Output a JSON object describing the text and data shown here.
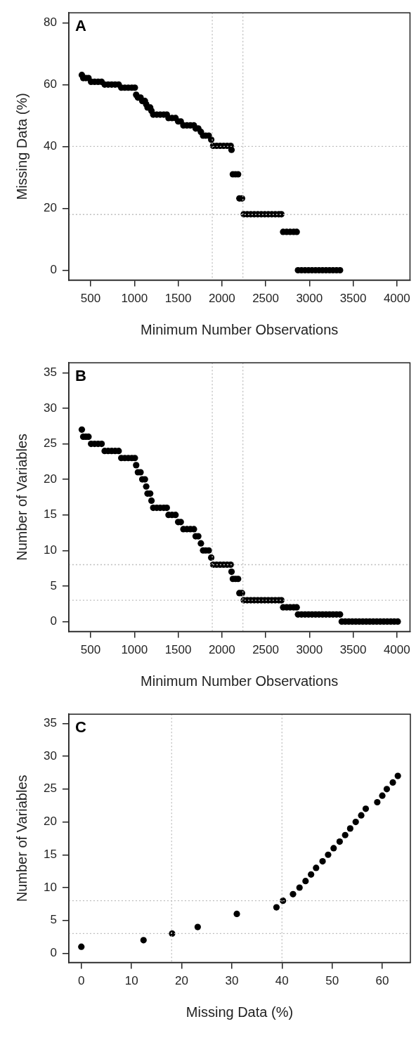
{
  "chart_data": [
    {
      "type": "scatter",
      "xlabel": "Minimum Number Observations",
      "ylabel": "Missing Data (%)",
      "annotations": [
        "A"
      ],
      "marker": "circle",
      "color": "#000000",
      "x": [
        399,
        415,
        445,
        475,
        505,
        545,
        585,
        625,
        660,
        700,
        740,
        780,
        820,
        850,
        890,
        930,
        970,
        1005,
        1020,
        1040,
        1070,
        1090,
        1120,
        1135,
        1150,
        1180,
        1195,
        1215,
        1255,
        1295,
        1335,
        1370,
        1390,
        1430,
        1470,
        1500,
        1530,
        1560,
        1600,
        1640,
        1680,
        1700,
        1730,
        1760,
        1785,
        1815,
        1850,
        1878,
        1900,
        1940,
        1980,
        2020,
        2060,
        2100,
        2110,
        2125,
        2155,
        2185,
        2200,
        2230,
        2250,
        2290,
        2330,
        2370,
        2410,
        2450,
        2490,
        2530,
        2570,
        2610,
        2650,
        2680,
        2700,
        2740,
        2780,
        2820,
        2855,
        2870,
        2910,
        2950,
        2990,
        3030,
        3070,
        3110,
        3150,
        3190,
        3230,
        3270,
        3310,
        3350
      ],
      "values": [
        63.1,
        62.1,
        62.1,
        62.1,
        60.9,
        60.9,
        60.9,
        60.9,
        60.0,
        60.0,
        60.0,
        60.0,
        60.0,
        59.0,
        59.0,
        59.0,
        59.0,
        59.0,
        56.7,
        55.8,
        55.8,
        54.7,
        54.7,
        53.6,
        52.6,
        52.6,
        51.5,
        50.3,
        50.3,
        50.3,
        50.3,
        50.3,
        49.2,
        49.2,
        49.2,
        48.1,
        48.1,
        46.8,
        46.8,
        46.8,
        46.8,
        45.8,
        45.8,
        44.7,
        43.5,
        43.5,
        43.5,
        42.2,
        40.2,
        40.2,
        40.2,
        40.2,
        40.2,
        40.2,
        38.9,
        31.0,
        31.0,
        31.0,
        23.2,
        23.2,
        18.1,
        18.1,
        18.1,
        18.1,
        18.1,
        18.1,
        18.1,
        18.1,
        18.1,
        18.1,
        18.1,
        18.1,
        12.4,
        12.4,
        12.4,
        12.4,
        12.4,
        0,
        0,
        0,
        0,
        0,
        0,
        0,
        0,
        0,
        0,
        0,
        0,
        0
      ],
      "xlim": [
        250,
        4150
      ],
      "xticks": [
        500,
        1000,
        1500,
        2000,
        2500,
        3000,
        3500,
        4000
      ],
      "ylim": [
        -3.2,
        83.2
      ],
      "yticks": [
        0,
        20,
        40,
        60,
        80
      ],
      "ref_lines": [
        {
          "axis": "x",
          "value": 1890,
          "color": "#bebebe",
          "line_style": "dotted"
        },
        {
          "axis": "x",
          "value": 2240,
          "color": "#bebebe",
          "line_style": "dotted"
        },
        {
          "axis": "y",
          "value": 40,
          "color": "#bebebe",
          "line_style": "dotted"
        },
        {
          "axis": "y",
          "value": 18,
          "color": "#bebebe",
          "line_style": "dotted"
        }
      ]
    },
    {
      "type": "scatter",
      "xlabel": "Minimum Number Observations",
      "ylabel": "Number of Variables",
      "annotations": [
        "B"
      ],
      "marker": "circle",
      "color": "#000000",
      "x": [
        399,
        415,
        445,
        475,
        505,
        545,
        585,
        625,
        660,
        700,
        740,
        780,
        820,
        850,
        890,
        930,
        970,
        1005,
        1020,
        1040,
        1070,
        1090,
        1120,
        1135,
        1150,
        1180,
        1195,
        1215,
        1255,
        1295,
        1335,
        1370,
        1390,
        1430,
        1470,
        1500,
        1530,
        1560,
        1600,
        1640,
        1680,
        1700,
        1730,
        1760,
        1785,
        1815,
        1850,
        1878,
        1900,
        1940,
        1980,
        2020,
        2060,
        2100,
        2110,
        2125,
        2155,
        2185,
        2200,
        2230,
        2250,
        2290,
        2330,
        2370,
        2410,
        2450,
        2490,
        2530,
        2570,
        2610,
        2650,
        2680,
        2700,
        2740,
        2780,
        2820,
        2855,
        2870,
        2910,
        2950,
        2990,
        3030,
        3070,
        3110,
        3150,
        3190,
        3230,
        3270,
        3310,
        3350,
        3370,
        3410,
        3450,
        3490,
        3530,
        3570,
        3610,
        3650,
        3690,
        3730,
        3770,
        3810,
        3850,
        3890,
        3930,
        3970,
        4010
      ],
      "values": [
        27,
        26,
        26,
        26,
        25,
        25,
        25,
        25,
        24,
        24,
        24,
        24,
        24,
        23,
        23,
        23,
        23,
        23,
        22,
        21,
        21,
        20,
        20,
        19,
        18,
        18,
        17,
        16,
        16,
        16,
        16,
        16,
        15,
        15,
        15,
        14,
        14,
        13,
        13,
        13,
        13,
        12,
        12,
        11,
        10,
        10,
        10,
        9,
        8,
        8,
        8,
        8,
        8,
        8,
        7,
        6,
        6,
        6,
        4,
        4,
        3,
        3,
        3,
        3,
        3,
        3,
        3,
        3,
        3,
        3,
        3,
        3,
        2,
        2,
        2,
        2,
        2,
        1,
        1,
        1,
        1,
        1,
        1,
        1,
        1,
        1,
        1,
        1,
        1,
        1,
        0,
        0,
        0,
        0,
        0,
        0,
        0,
        0,
        0,
        0,
        0,
        0,
        0,
        0,
        0,
        0,
        0
      ],
      "xlim": [
        250,
        4150
      ],
      "xticks": [
        500,
        1000,
        1500,
        2000,
        2500,
        3000,
        3500,
        4000
      ],
      "ylim": [
        -1.4,
        36.4
      ],
      "yticks": [
        0,
        5,
        10,
        15,
        20,
        25,
        30,
        35
      ],
      "ref_lines": [
        {
          "axis": "x",
          "value": 1890,
          "color": "#bebebe",
          "line_style": "dotted"
        },
        {
          "axis": "x",
          "value": 2240,
          "color": "#bebebe",
          "line_style": "dotted"
        },
        {
          "axis": "y",
          "value": 8,
          "color": "#bebebe",
          "line_style": "dotted"
        },
        {
          "axis": "y",
          "value": 3,
          "color": "#bebebe",
          "line_style": "dotted"
        }
      ]
    },
    {
      "type": "scatter",
      "xlabel": "Missing Data (%)",
      "ylabel": "Number of Variables",
      "annotations": [
        "C"
      ],
      "marker": "circle",
      "color": "#000000",
      "x": [
        0,
        12.4,
        18.1,
        23.2,
        31.0,
        38.9,
        40.2,
        42.2,
        43.5,
        44.7,
        45.8,
        46.8,
        48.1,
        49.2,
        50.3,
        51.5,
        52.6,
        53.6,
        54.7,
        55.8,
        56.7,
        59.0,
        60.0,
        60.9,
        62.1,
        63.1
      ],
      "values": [
        1,
        2,
        3,
        4,
        6,
        7,
        8,
        9,
        10,
        11,
        12,
        13,
        14,
        15,
        16,
        17,
        18,
        19,
        20,
        21,
        22,
        23,
        24,
        25,
        26,
        27
      ],
      "xlim": [
        -2.5,
        65.6
      ],
      "xticks": [
        0,
        10,
        20,
        30,
        40,
        50,
        60
      ],
      "ylim": [
        -1.4,
        36.4
      ],
      "yticks": [
        0,
        5,
        10,
        15,
        20,
        25,
        30,
        35
      ],
      "ref_lines": [
        {
          "axis": "x",
          "value": 18,
          "color": "#bebebe",
          "line_style": "dotted"
        },
        {
          "axis": "x",
          "value": 40,
          "color": "#bebebe",
          "line_style": "dotted"
        },
        {
          "axis": "y",
          "value": 8,
          "color": "#bebebe",
          "line_style": "dotted"
        },
        {
          "axis": "y",
          "value": 3,
          "color": "#bebebe",
          "line_style": "dotted"
        }
      ]
    }
  ]
}
